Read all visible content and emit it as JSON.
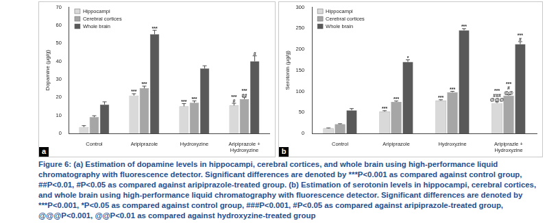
{
  "chart_data": [
    {
      "type": "bar",
      "panel_label": "a",
      "y_label": "Dopamine (μg/g)",
      "categories": [
        "Control",
        "Aripiprazole",
        "Hydroxyzine",
        "Aripiprazole + Hydroxyzine"
      ],
      "series": [
        {
          "name": "Hippocampi",
          "color": "#d9d9d9",
          "values": [
            3.5,
            21,
            15,
            15.5
          ],
          "errors": [
            0.8,
            1,
            1.5,
            1.2
          ],
          "annotations": [
            null,
            [
              "***"
            ],
            [
              "***"
            ],
            [
              "***",
              "#"
            ]
          ]
        },
        {
          "name": "Cerebral cortices",
          "color": "#a6a6a6",
          "values": [
            9,
            25,
            17,
            19
          ],
          "errors": [
            0.8,
            1.2,
            1,
            1
          ],
          "annotations": [
            null,
            [
              "***"
            ],
            [
              "***"
            ],
            [
              "***",
              "##"
            ]
          ]
        },
        {
          "name": "Whole brain",
          "color": "#595959",
          "values": [
            16,
            55,
            36,
            40
          ],
          "errors": [
            1.5,
            2.2,
            1.5,
            3
          ],
          "annotations": [
            null,
            [
              "***"
            ],
            null,
            [
              "#"
            ]
          ]
        }
      ],
      "ylim": [
        0,
        70
      ],
      "yticks": [
        0,
        10,
        20,
        30,
        40,
        50,
        60,
        70
      ],
      "grid": false,
      "legend": "upper left"
    },
    {
      "type": "bar",
      "panel_label": "b",
      "y_label": "Serotonin (μg/g)",
      "categories": [
        "Control",
        "Aripiprazole",
        "Hydroxyzine",
        "Aripiprazle + Hydroxyzine"
      ],
      "series": [
        {
          "name": "Hippocampi",
          "color": "#d9d9d9",
          "values": [
            12,
            52,
            78,
            72
          ],
          "errors": [
            1,
            2,
            2,
            3
          ],
          "annotations": [
            null,
            [
              "***"
            ],
            [
              "***"
            ],
            [
              "***",
              "###",
              "@@@"
            ]
          ]
        },
        {
          "name": "Cerebral cortices",
          "color": "#a6a6a6",
          "values": [
            22,
            75,
            98,
            90
          ],
          "errors": [
            1,
            2,
            2,
            2
          ],
          "annotations": [
            null,
            [
              "***"
            ],
            [
              "***"
            ],
            [
              "***",
              "#",
              "@@"
            ]
          ]
        },
        {
          "name": "Whole brain",
          "color": "#595959",
          "values": [
            55,
            170,
            245,
            212
          ],
          "errors": [
            4,
            5,
            4,
            6
          ],
          "annotations": [
            null,
            [
              "*"
            ],
            [
              "***"
            ],
            [
              "***",
              "#"
            ]
          ]
        }
      ],
      "ylim": [
        0,
        300
      ],
      "yticks": [
        0,
        50,
        100,
        150,
        200,
        250,
        300
      ],
      "grid": false,
      "legend": "upper left"
    }
  ],
  "caption": {
    "label": "Figure 6:",
    "text": "(a) Estimation of dopamine levels in hippocampi, cerebral cortices, and whole brain using high-performance liquid chromatography with fluorescence detector. Significant differences are denoted by ***P<0.001 as compared against control group, ##P<0.01, #P<0.05 as compared against aripiprazole-treated group. (b) Estimation of serotonin levels in hippocampi, cerebral cortices, and whole brain using high-performance liquid chromatography with fluorescence detector. Significant differences are denoted by ***P<0.001, *P<0.05 as compared against control group, ###P<0.001, #P<0.05 as compared against aripiprazole-treated group, @@@P<0.001, @@P<0.01 as compared against hydroxyzine-treated group"
  }
}
